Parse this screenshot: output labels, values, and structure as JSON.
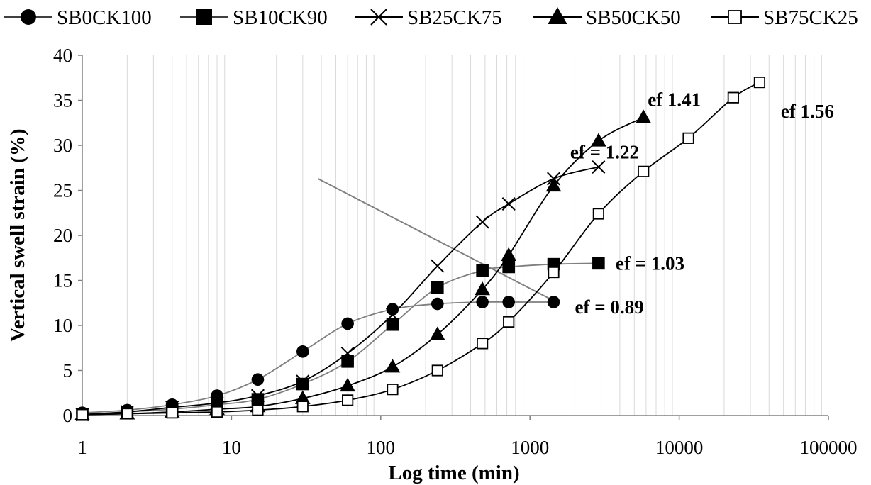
{
  "chart_data": {
    "type": "line",
    "title": "",
    "xlabel": "Log time (min)",
    "ylabel": "Vertical swell strain (%)",
    "x_scale": "log",
    "xlim": [
      1,
      100000
    ],
    "ylim": [
      0,
      40
    ],
    "x_ticks": [
      "1",
      "10",
      "100",
      "1000",
      "10000",
      "100000"
    ],
    "y_ticks": [
      "0",
      "5",
      "10",
      "15",
      "20",
      "25",
      "30",
      "35",
      "40"
    ],
    "grid": "vertical minor lines",
    "legend_position": "top",
    "series": [
      {
        "name": "SB0CK100",
        "marker": "circle-filled",
        "line_color": "#7f7f7f",
        "x": [
          1,
          2,
          4,
          8,
          15,
          30,
          60,
          120,
          240,
          480,
          720,
          1440
        ],
        "y": [
          0.3,
          0.6,
          1.2,
          2.2,
          4.0,
          7.1,
          10.2,
          11.8,
          12.4,
          12.6,
          12.6,
          12.6
        ]
      },
      {
        "name": "SB10CK90",
        "marker": "square-filled",
        "line_color": "#7f7f7f",
        "x": [
          1,
          2,
          4,
          8,
          15,
          30,
          60,
          120,
          240,
          480,
          720,
          1440,
          2880
        ],
        "y": [
          0.1,
          0.4,
          0.7,
          1.2,
          1.8,
          3.5,
          6.0,
          10.1,
          14.2,
          16.1,
          16.5,
          16.8,
          16.9
        ]
      },
      {
        "name": "SB25CK75",
        "marker": "cross",
        "line_color": "#000000",
        "x": [
          1,
          2,
          4,
          8,
          15,
          30,
          60,
          120,
          240,
          480,
          720,
          1440,
          2880
        ],
        "y": [
          0.1,
          0.4,
          0.9,
          1.4,
          2.2,
          3.8,
          6.9,
          11.2,
          16.6,
          21.5,
          23.5,
          26.3,
          27.6
        ]
      },
      {
        "name": "SB50CK50",
        "marker": "triangle-filled",
        "line_color": "#000000",
        "x": [
          1,
          2,
          4,
          8,
          15,
          30,
          60,
          120,
          240,
          480,
          720,
          1440,
          2880,
          5760
        ],
        "y": [
          0.1,
          0.2,
          0.4,
          0.7,
          1.0,
          1.9,
          3.3,
          5.4,
          9.0,
          14.0,
          17.8,
          25.5,
          30.5,
          33.1
        ]
      },
      {
        "name": "SB75CK25",
        "marker": "square-open",
        "line_color": "#000000",
        "x": [
          1,
          2,
          4,
          8,
          15,
          30,
          60,
          120,
          240,
          480,
          720,
          1440,
          2880,
          5760,
          11520,
          23040,
          34560
        ],
        "y": [
          0.1,
          0.2,
          0.3,
          0.4,
          0.6,
          1.0,
          1.7,
          2.9,
          5.0,
          8.0,
          10.4,
          15.9,
          22.4,
          27.1,
          30.8,
          35.3,
          37.0
        ]
      }
    ],
    "annotations": [
      {
        "text": "ef = 0.89",
        "series": "SB0CK100"
      },
      {
        "text": "ef = 1.03",
        "series": "SB10CK90"
      },
      {
        "text": "ef = 1.22",
        "series": "SB25CK75"
      },
      {
        "text": "ef 1.41",
        "series": "SB50CK50"
      },
      {
        "text": "ef 1.56",
        "series": "SB75CK25"
      }
    ],
    "trend_line": {
      "x": [
        38,
        1500
      ],
      "y": [
        26.3,
        12.6
      ]
    }
  }
}
